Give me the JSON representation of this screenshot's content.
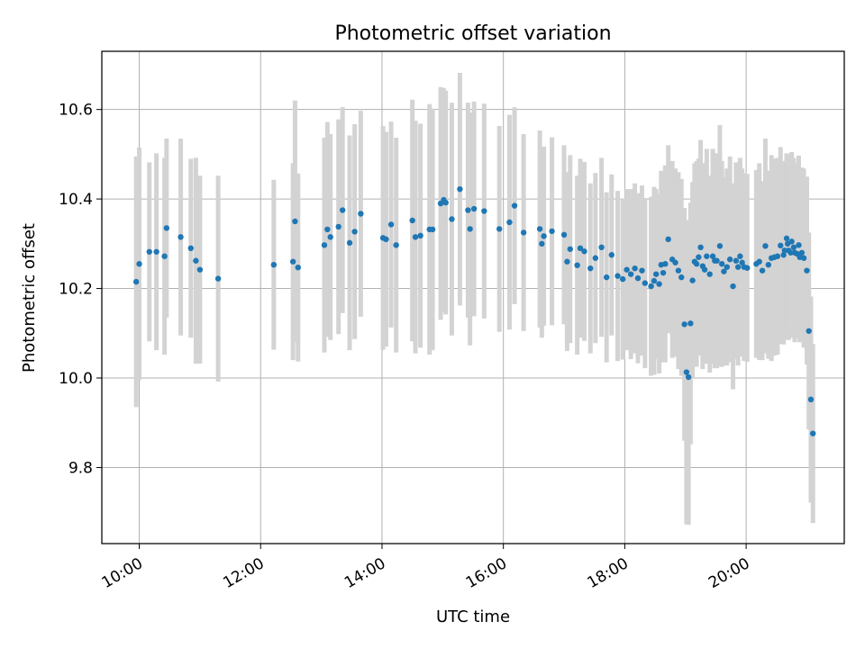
{
  "chart_data": {
    "type": "scatter",
    "title": "Photometric offset variation",
    "xlabel": "UTC time",
    "ylabel": "Photometric offset",
    "x_ticks": [
      "10:00",
      "12:00",
      "14:00",
      "16:00",
      "18:00",
      "20:00"
    ],
    "y_ticks": [
      "9.8",
      "10.0",
      "10.2",
      "10.4",
      "10.6"
    ],
    "xlim": [
      "09:23",
      "21:37"
    ],
    "ylim": [
      9.63,
      10.73
    ],
    "grid": true,
    "marker_color": "#1f77b4",
    "errorbar_color": "#d3d3d3",
    "series": [
      {
        "x": [
          "09:57",
          "10:00",
          "10:10",
          "10:17",
          "10:25",
          "10:27",
          "10:41",
          "10:51",
          "10:56",
          "11:00",
          "11:18",
          "12:13",
          "12:32",
          "12:34",
          "12:37",
          "13:03",
          "13:06",
          "13:09",
          "13:17",
          "13:21",
          "13:28",
          "13:33",
          "13:39",
          "14:01",
          "14:04",
          "14:09",
          "14:14",
          "14:30",
          "14:33",
          "14:38",
          "14:47",
          "14:50",
          "14:58",
          "15:01",
          "15:03",
          "15:09",
          "15:17",
          "15:25",
          "15:27",
          "15:31",
          "15:41",
          "15:56",
          "16:06",
          "16:11",
          "16:20",
          "16:36",
          "16:38",
          "16:40",
          "16:48",
          "17:00",
          "17:03",
          "17:06",
          "17:13",
          "17:16",
          "17:20",
          "17:26",
          "17:31",
          "17:37",
          "17:42",
          "17:47",
          "17:53",
          "17:58",
          "18:02",
          "18:06",
          "18:10",
          "18:13",
          "18:17",
          "18:20",
          "18:26",
          "18:29",
          "18:31",
          "18:34",
          "18:36",
          "18:38",
          "18:40",
          "18:43",
          "18:47",
          "18:50",
          "18:53",
          "18:56",
          "18:59",
          "19:01",
          "19:03",
          "19:05",
          "19:07",
          "19:09",
          "19:11",
          "19:13",
          "19:15",
          "19:17",
          "19:19",
          "19:21",
          "19:24",
          "19:27",
          "19:29",
          "19:31",
          "19:34",
          "19:36",
          "19:38",
          "19:41",
          "19:44",
          "19:47",
          "19:50",
          "19:52",
          "19:54",
          "19:56",
          "19:58",
          "20:01",
          "20:10",
          "20:13",
          "20:16",
          "20:19",
          "20:22",
          "20:25",
          "20:28",
          "20:31",
          "20:34",
          "20:37",
          "20:38",
          "20:40",
          "20:41",
          "20:42",
          "20:44",
          "20:45",
          "20:47",
          "20:48",
          "20:50",
          "20:52",
          "20:53",
          "20:55",
          "20:57",
          "21:00",
          "21:02",
          "21:04",
          "21:06"
        ],
        "y": [
          10.215,
          10.255,
          10.282,
          10.282,
          10.272,
          10.335,
          10.315,
          10.29,
          10.262,
          10.242,
          10.222,
          10.253,
          10.26,
          10.35,
          10.247,
          10.297,
          10.332,
          10.315,
          10.338,
          10.375,
          10.302,
          10.327,
          10.367,
          10.313,
          10.31,
          10.343,
          10.297,
          10.352,
          10.315,
          10.318,
          10.332,
          10.332,
          10.39,
          10.398,
          10.392,
          10.355,
          10.422,
          10.375,
          10.333,
          10.378,
          10.373,
          10.333,
          10.348,
          10.385,
          10.325,
          10.333,
          10.3,
          10.317,
          10.328,
          10.32,
          10.26,
          10.288,
          10.252,
          10.29,
          10.283,
          10.245,
          10.268,
          10.292,
          10.225,
          10.275,
          10.228,
          10.221,
          10.242,
          10.232,
          10.245,
          10.223,
          10.24,
          10.212,
          10.205,
          10.217,
          10.232,
          10.21,
          10.253,
          10.235,
          10.255,
          10.31,
          10.265,
          10.258,
          10.24,
          10.225,
          10.12,
          10.013,
          10.002,
          10.122,
          10.218,
          10.26,
          10.255,
          10.27,
          10.292,
          10.25,
          10.242,
          10.272,
          10.232,
          10.272,
          10.262,
          10.262,
          10.295,
          10.255,
          10.238,
          10.248,
          10.265,
          10.205,
          10.262,
          10.248,
          10.272,
          10.258,
          10.248,
          10.246,
          10.255,
          10.26,
          10.24,
          10.295,
          10.253,
          10.268,
          10.27,
          10.272,
          10.296,
          10.275,
          10.285,
          10.312,
          10.3,
          10.285,
          10.28,
          10.305,
          10.292,
          10.28,
          10.278,
          10.297,
          10.27,
          10.28,
          10.268,
          10.24,
          10.105,
          9.952,
          9.876
        ],
        "yerr": [
          0.28,
          0.26,
          0.2,
          0.22,
          0.22,
          0.2,
          0.22,
          0.2,
          0.23,
          0.21,
          0.23,
          0.19,
          0.22,
          0.27,
          0.21,
          0.24,
          0.24,
          0.23,
          0.24,
          0.23,
          0.24,
          0.24,
          0.23,
          0.25,
          0.24,
          0.23,
          0.24,
          0.27,
          0.26,
          0.25,
          0.28,
          0.27,
          0.26,
          0.25,
          0.25,
          0.26,
          0.26,
          0.24,
          0.26,
          0.24,
          0.24,
          0.23,
          0.24,
          0.22,
          0.22,
          0.22,
          0.21,
          0.2,
          0.21,
          0.2,
          0.2,
          0.21,
          0.2,
          0.2,
          0.2,
          0.19,
          0.19,
          0.2,
          0.19,
          0.18,
          0.19,
          0.18,
          0.18,
          0.19,
          0.19,
          0.19,
          0.19,
          0.19,
          0.2,
          0.21,
          0.19,
          0.2,
          0.21,
          0.2,
          0.22,
          0.21,
          0.22,
          0.21,
          0.22,
          0.22,
          0.26,
          0.34,
          0.33,
          0.27,
          0.22,
          0.22,
          0.23,
          0.22,
          0.24,
          0.23,
          0.21,
          0.24,
          0.22,
          0.24,
          0.24,
          0.24,
          0.27,
          0.23,
          0.21,
          0.22,
          0.23,
          0.23,
          0.22,
          0.22,
          0.22,
          0.21,
          0.21,
          0.21,
          0.21,
          0.22,
          0.2,
          0.24,
          0.21,
          0.23,
          0.22,
          0.22,
          0.22,
          0.2,
          0.2,
          0.19,
          0.2,
          0.2,
          0.19,
          0.2,
          0.2,
          0.2,
          0.19,
          0.2,
          0.19,
          0.19,
          0.2,
          0.21,
          0.22,
          0.23,
          0.2
        ]
      }
    ]
  }
}
